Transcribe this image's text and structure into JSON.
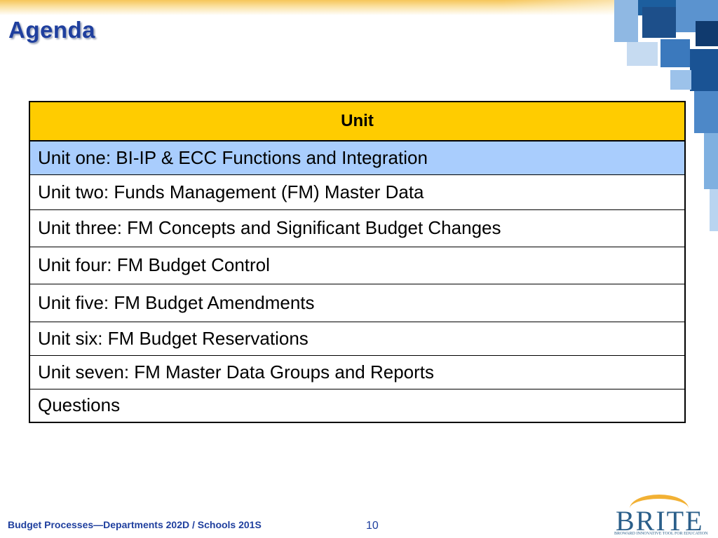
{
  "slide": {
    "title": "Agenda",
    "footer_text": "Budget Processes—Departments 202D / Schools 201S",
    "page_number": "10"
  },
  "table": {
    "header": "Unit",
    "rows": [
      "Unit one: BI-IP & ECC Functions and Integration",
      "Unit two: Funds Management (FM) Master Data",
      "Unit three: FM Concepts and Significant Budget Changes",
      "Unit four: FM Budget Control",
      "Unit five: FM Budget Amendments",
      "Unit six: FM Budget Reservations",
      "Unit seven: FM Master Data Groups and Reports",
      "Questions"
    ],
    "highlighted_row_index": 0
  },
  "logo": {
    "wordmark": "BRITE",
    "tagline": "BROWARD INNOVATIVE TOOL FOR EDUCATION"
  },
  "colors": {
    "title": "#1f3f9e",
    "header_fill": "#ffcc00",
    "highlight_fill": "#a9cdfd",
    "logo_blue": "#2b5f8a",
    "logo_gold": "#f2b134"
  }
}
